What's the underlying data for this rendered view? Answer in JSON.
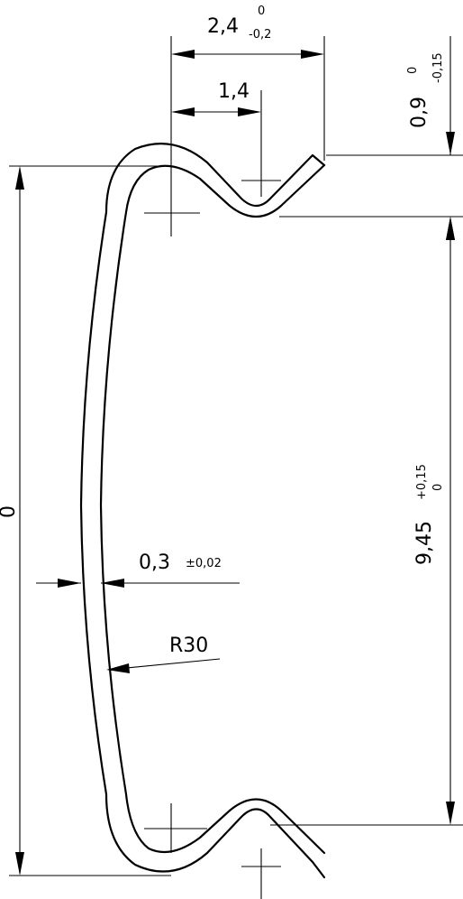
{
  "drawing": {
    "dim_width_total": {
      "value": "2,4",
      "upper": "0",
      "lower": "-0,2"
    },
    "dim_center_offset": {
      "value": "1,4"
    },
    "dim_lip_height": {
      "value": "0,9",
      "upper": "0",
      "lower": "-0,15"
    },
    "dim_inner_height": {
      "value": "9,45",
      "upper": "+0,15",
      "lower": "0"
    },
    "dim_thickness": {
      "value": "0,3",
      "tolerance": "±0,02"
    },
    "dim_radius": {
      "value": "R30"
    },
    "dim_overall_height": {
      "value": "0"
    }
  }
}
